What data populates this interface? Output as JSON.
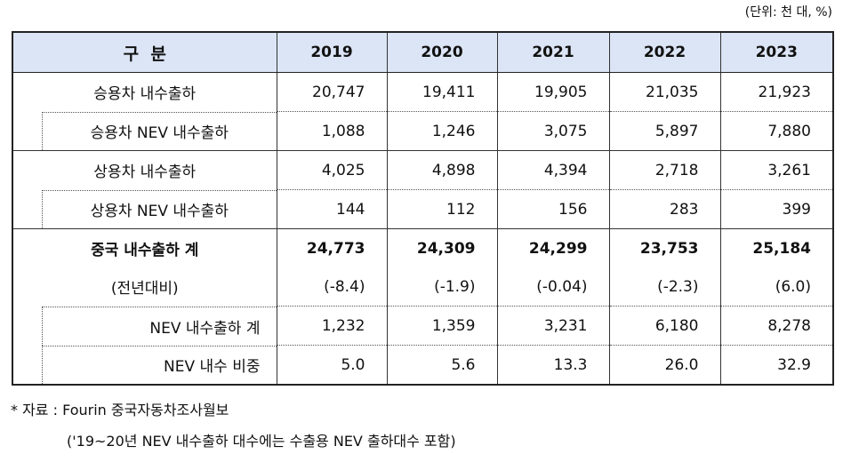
{
  "unit_label": "(단위: 천 대, %)",
  "table": {
    "header": [
      "구  분",
      "2019",
      "2020",
      "2021",
      "2022",
      "2023"
    ],
    "rows": [
      {
        "label": "승용차 내수출하",
        "values": [
          "20,747",
          "19,411",
          "19,905",
          "21,035",
          "21,923"
        ]
      },
      {
        "label": "승용차 NEV 내수출하",
        "values": [
          "1,088",
          "1,246",
          "3,075",
          "5,897",
          "7,880"
        ]
      },
      {
        "label": "상용차 내수출하",
        "values": [
          "4,025",
          "4,898",
          "4,394",
          "2,718",
          "3,261"
        ]
      },
      {
        "label": "상용차 NEV 내수출하",
        "values": [
          "144",
          "112",
          "156",
          "283",
          "399"
        ]
      },
      {
        "label": "중국 내수출하 계",
        "values": [
          "24,773",
          "24,309",
          "24,299",
          "23,753",
          "25,184"
        ]
      },
      {
        "label": "(전년대비)",
        "values": [
          "(-8.4)",
          "(-1.9)",
          "(-0.04)",
          "(-2.3)",
          "(6.0)"
        ]
      },
      {
        "label": "NEV 내수출하 계",
        "values": [
          "1,232",
          "1,359",
          "3,231",
          "6,180",
          "8,278"
        ]
      },
      {
        "label": "NEV 내수 비중",
        "values": [
          "5.0",
          "5.6",
          "13.3",
          "26.0",
          "32.9"
        ]
      }
    ]
  },
  "notes": {
    "source": "* 자료 : Fourin 중국자동차조사월보",
    "remark": "('19~20년 NEV 내수출하 대수에는 수출용 NEV 출하대수 포함)"
  }
}
